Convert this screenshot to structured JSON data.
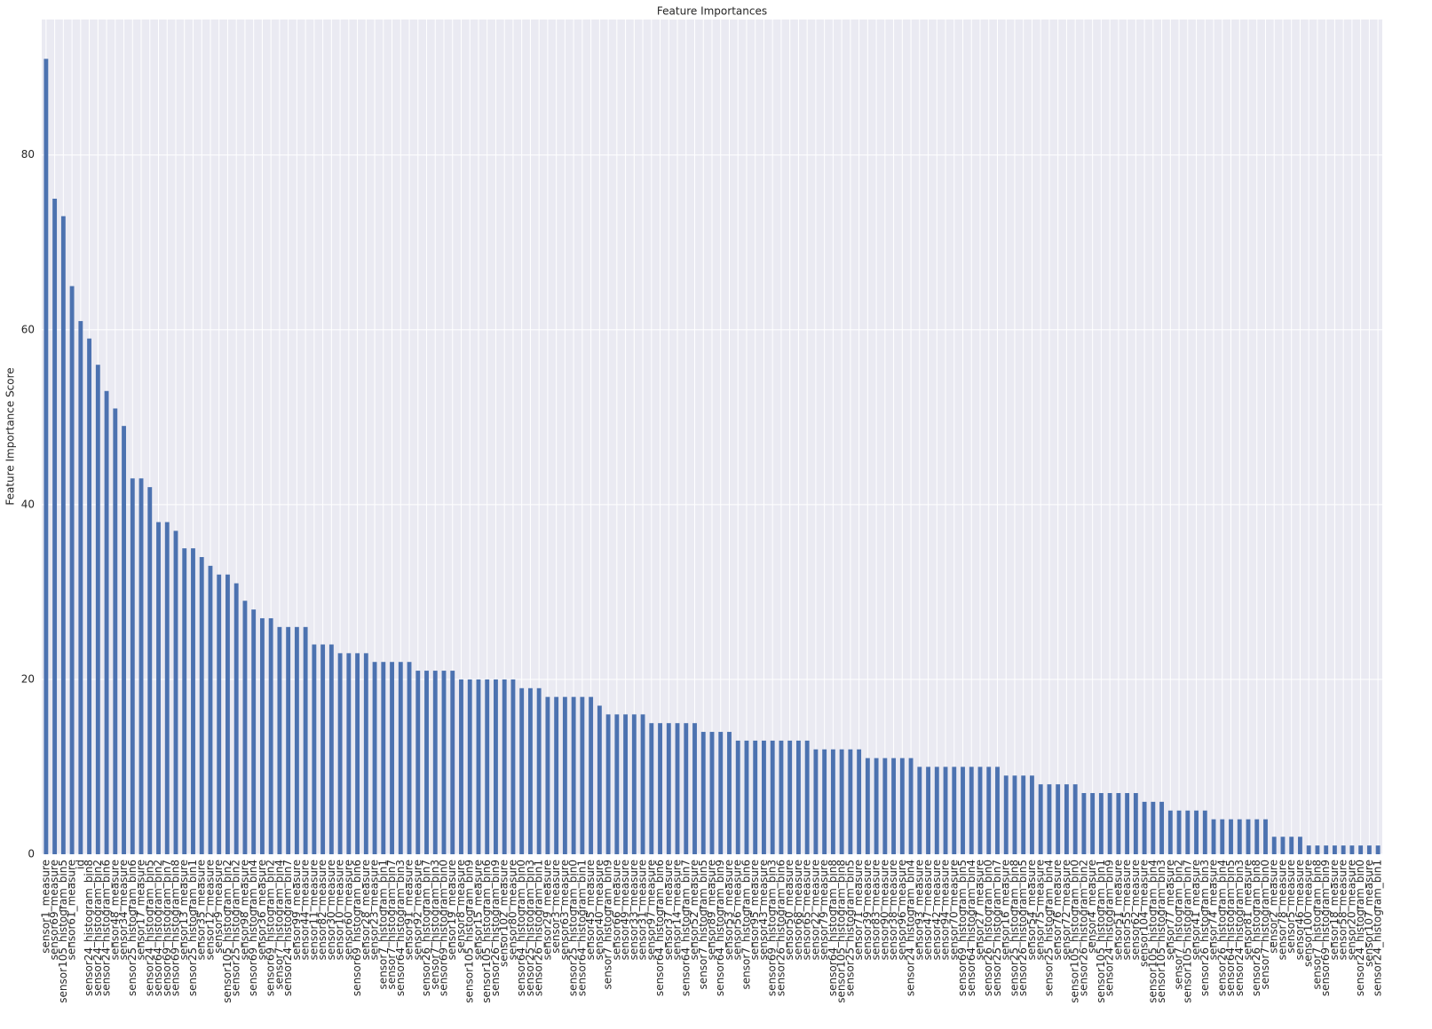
{
  "chart_data": {
    "type": "bar",
    "title": "Feature Importances",
    "ylabel": "Feature Importance Score",
    "categories": [
      "sensor1_measure",
      "sensor69_measure",
      "sensor105_histogram_bin5",
      "sensor61_measure",
      "id",
      "sensor24_histogram_bin8",
      "sensor24_histogram_bin2",
      "sensor24_histogram_bin6",
      "sensor48_measure",
      "sensor34_measure",
      "sensor25_histogram_bin6",
      "sensor17_measure",
      "sensor24_histogram_bin5",
      "sensor64_histogram_bin2",
      "sensor69_histogram_bin7",
      "sensor69_histogram_bin8",
      "sensor13_measure",
      "sensor25_histogram_bin1",
      "sensor35_measure",
      "sensor12_measure",
      "sensor9_measure",
      "sensor105_histogram_bin2",
      "sensor25_histogram_bin2",
      "sensor98_measure",
      "sensor69_histogram_bin4",
      "sensor36_measure",
      "sensor69_histogram_bin2",
      "sensor7_histogram_bin4",
      "sensor24_histogram_bin7",
      "sensor99_measure",
      "sensor44_measure",
      "sensor11_measure",
      "sensor82_measure",
      "sensor30_measure",
      "sensor10_measure",
      "sensor60_measure",
      "sensor69_histogram_bin6",
      "sensor28_measure",
      "sensor23_measure",
      "sensor7_histogram_bin1",
      "sensor7_histogram_bin7",
      "sensor64_histogram_bin3",
      "sensor91_measure",
      "sensor92_measure",
      "sensor26_histogram_bin7",
      "sensor7_histogram_bin3",
      "sensor69_histogram_bin0",
      "sensor19_measure",
      "sensor8_measure",
      "sensor105_histogram_bin9",
      "sensor15_measure",
      "sensor105_histogram_bin6",
      "sensor26_histogram_bin9",
      "sensor102_measure",
      "sensor80_measure",
      "sensor64_histogram_bin0",
      "sensor25_histogram_bin3",
      "sensor26_histogram_bin1",
      "sensor29_measure",
      "sensor3_measure",
      "sensor63_measure",
      "sensor25_histogram_bin0",
      "sensor64_histogram_bin1",
      "sensor45_measure",
      "sensor40_measure",
      "sensor7_histogram_bin9",
      "sensor66_measure",
      "sensor49_measure",
      "sensor33_measure",
      "sensor31_measure",
      "sensor97_measure",
      "sensor64_histogram_bin6",
      "sensor37_measure",
      "sensor14_measure",
      "sensor64_histogram_bin7",
      "sensor52_measure",
      "sensor7_histogram_bin5",
      "sensor89_measure",
      "sensor64_histogram_bin9",
      "sensor53_measure",
      "sensor56_measure",
      "sensor7_histogram_bin6",
      "sensor95_measure",
      "sensor43_measure",
      "sensor69_histogram_bin3",
      "sensor26_histogram_bin6",
      "sensor50_measure",
      "sensor68_measure",
      "sensor65_measure",
      "sensor22_measure",
      "sensor79_measure",
      "sensor64_histogram_bin8",
      "sensor105_histogram_bin8",
      "sensor25_histogram_bin5",
      "sensor71_measure",
      "sensor39_measure",
      "sensor83_measure",
      "sensor90_measure",
      "sensor38_measure",
      "sensor96_measure",
      "sensor24_histogram_bin4",
      "sensor93_measure",
      "sensor47_measure",
      "sensor42_measure",
      "sensor94_measure",
      "sensor70_measure",
      "sensor69_histogram_bin5",
      "sensor64_histogram_bin4",
      "sensor27_measure",
      "sensor26_histogram_bin0",
      "sensor25_histogram_bin7",
      "sensor16_measure",
      "sensor25_histogram_bin8",
      "sensor26_histogram_bin5",
      "sensor54_measure",
      "sensor75_measure",
      "sensor25_histogram_bin4",
      "sensor76_measure",
      "sensor72_measure",
      "sensor105_histogram_bin0",
      "sensor26_histogram_bin2",
      "sensor4_measure",
      "sensor105_histogram_bin1",
      "sensor24_histogram_bin9",
      "sensor51_measure",
      "sensor55_measure",
      "sensor62_measure",
      "sensor104_measure",
      "sensor105_histogram_bin4",
      "sensor105_histogram_bin3",
      "sensor77_measure",
      "sensor7_histogram_bin2",
      "sensor105_histogram_bin7",
      "sensor41_measure",
      "sensor26_histogram_bin3",
      "sensor74_measure",
      "sensor26_histogram_bin4",
      "sensor64_histogram_bin5",
      "sensor24_histogram_bin3",
      "sensor81_measure",
      "sensor26_histogram_bin8",
      "sensor7_histogram_bin0",
      "sensor2_measure",
      "sensor78_measure",
      "sensor5_measure",
      "sensor46_measure",
      "sensor100_measure",
      "sensor7_histogram_bin8",
      "sensor69_histogram_bin9",
      "sensor18_measure",
      "sensor58_measure",
      "sensor20_measure",
      "sensor24_histogram_bin0",
      "sensor107_measure",
      "sensor24_histogram_bin1"
    ],
    "values": [
      91,
      75,
      73,
      65,
      61,
      59,
      56,
      53,
      51,
      49,
      43,
      43,
      42,
      38,
      38,
      37,
      35,
      35,
      34,
      33,
      32,
      32,
      31,
      29,
      28,
      27,
      27,
      26,
      26,
      26,
      26,
      24,
      24,
      24,
      23,
      23,
      23,
      23,
      22,
      22,
      22,
      22,
      22,
      21,
      21,
      21,
      21,
      21,
      20,
      20,
      20,
      20,
      20,
      20,
      20,
      19,
      19,
      19,
      18,
      18,
      18,
      18,
      18,
      18,
      17,
      16,
      16,
      16,
      16,
      16,
      15,
      15,
      15,
      15,
      15,
      15,
      14,
      14,
      14,
      14,
      13,
      13,
      13,
      13,
      13,
      13,
      13,
      13,
      13,
      12,
      12,
      12,
      12,
      12,
      12,
      11,
      11,
      11,
      11,
      11,
      11,
      10,
      10,
      10,
      10,
      10,
      10,
      10,
      10,
      10,
      10,
      9,
      9,
      9,
      9,
      8,
      8,
      8,
      8,
      8,
      7,
      7,
      7,
      7,
      7,
      7,
      7,
      6,
      6,
      6,
      5,
      5,
      5,
      5,
      5,
      4,
      4,
      4,
      4,
      4,
      4,
      4,
      2,
      2,
      2,
      2,
      1,
      1,
      1,
      1,
      1,
      1,
      1,
      1,
      1
    ],
    "color": "#4c72b0",
    "ylim": [
      0,
      95.5
    ],
    "yticks": [
      0,
      20,
      40,
      60,
      80
    ],
    "grid": true
  }
}
